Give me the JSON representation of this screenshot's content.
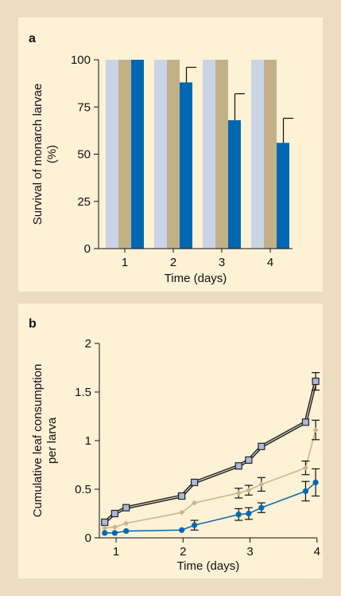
{
  "chart_data": [
    {
      "panel_label": "a",
      "type": "bar",
      "categories": [
        "1",
        "2",
        "3",
        "4"
      ],
      "series": [
        {
          "values": [
            100,
            100,
            100,
            100
          ],
          "color": "#c9d4e6"
        },
        {
          "values": [
            100,
            100,
            100,
            100
          ],
          "color": "#c2b186"
        },
        {
          "values": [
            100,
            88,
            68,
            56
          ],
          "errors": [
            0,
            8,
            14,
            13
          ],
          "color": "#0068b0"
        }
      ],
      "xlabel": "Time (days)",
      "ylabel": [
        "Survival of monarch larvae",
        "(%)"
      ],
      "ylim": [
        0,
        100
      ],
      "yticks": [
        0,
        25,
        50,
        75,
        100
      ],
      "grid": false
    },
    {
      "panel_label": "b",
      "type": "line",
      "xlabel": "Time (days)",
      "ylabel": [
        "Cumulative leaf consumption",
        "per larva"
      ],
      "xlim": [
        0.75,
        4.05
      ],
      "ylim": [
        0,
        2
      ],
      "xticks": [
        1,
        2,
        3,
        4
      ],
      "yticks": [
        0,
        0.5,
        1,
        1.5,
        2
      ],
      "ytick_labels": [
        "0",
        "0.5",
        "1",
        "1.5",
        "2"
      ],
      "grid": false,
      "series": [
        {
          "marker": "square",
          "color": "#aab8dc",
          "line_color": "#222222",
          "x": [
            0.83,
            0.98,
            1.15,
            1.98,
            2.17,
            2.83,
            2.98,
            3.17,
            3.83,
            3.98
          ],
          "y": [
            0.16,
            0.25,
            0.31,
            0.43,
            0.57,
            0.74,
            0.8,
            0.94,
            1.19,
            1.61
          ],
          "errors": [
            0,
            0,
            0,
            0.02,
            0,
            0,
            0,
            0,
            0,
            0.09
          ]
        },
        {
          "marker": "diamond",
          "color": "#c9b488",
          "line_color": "#c9b488",
          "x": [
            0.83,
            0.98,
            1.15,
            1.98,
            2.17,
            2.83,
            2.98,
            3.17,
            3.83,
            3.98
          ],
          "y": [
            0.1,
            0.11,
            0.15,
            0.26,
            0.36,
            0.46,
            0.49,
            0.55,
            0.72,
            1.11
          ],
          "errors": [
            0,
            0,
            0,
            0,
            0,
            0.05,
            0.05,
            0.07,
            0.07,
            0.1
          ]
        },
        {
          "marker": "circle",
          "color": "#0068b0",
          "line_color": "#0068b0",
          "x": [
            0.83,
            0.98,
            1.15,
            1.98,
            2.17,
            2.83,
            2.98,
            3.17,
            3.83,
            3.98
          ],
          "y": [
            0.05,
            0.05,
            0.07,
            0.08,
            0.13,
            0.24,
            0.25,
            0.31,
            0.48,
            0.57
          ],
          "errors": [
            0,
            0,
            0,
            0,
            0.05,
            0.06,
            0.06,
            0.05,
            0.1,
            0.14
          ]
        }
      ]
    }
  ]
}
